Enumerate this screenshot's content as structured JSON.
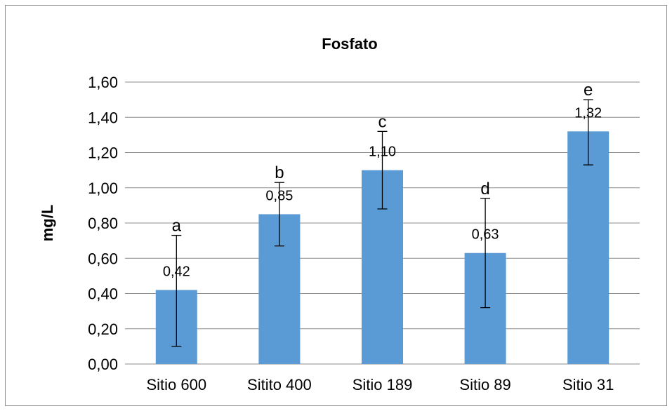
{
  "chart_data": {
    "type": "bar",
    "title": "Fosfato",
    "xlabel": "",
    "ylabel": "mg/L",
    "categories": [
      "Sitio 600",
      "Sitito 400",
      "Sitio 189",
      "Sitio 89",
      "Sitio 31"
    ],
    "values": [
      0.42,
      0.85,
      1.1,
      0.63,
      1.32
    ],
    "value_labels": [
      "0,42",
      "0,85",
      "1,10",
      "0,63",
      "1,32"
    ],
    "error_low": [
      0.1,
      0.67,
      0.88,
      0.32,
      1.13
    ],
    "error_high": [
      0.73,
      1.03,
      1.32,
      0.94,
      1.5
    ],
    "group_letters": [
      "a",
      "b",
      "c",
      "d",
      "e"
    ],
    "ylim": [
      0,
      1.6
    ],
    "yticks": [
      0,
      0.2,
      0.4,
      0.6,
      0.8,
      1.0,
      1.2,
      1.4,
      1.6
    ],
    "ytick_labels": [
      "0,00",
      "0,20",
      "0,40",
      "0,60",
      "0,80",
      "1,00",
      "1,20",
      "1,40",
      "1,60"
    ],
    "grid": true,
    "legend": "none",
    "bar_color": "#5b9bd5"
  }
}
